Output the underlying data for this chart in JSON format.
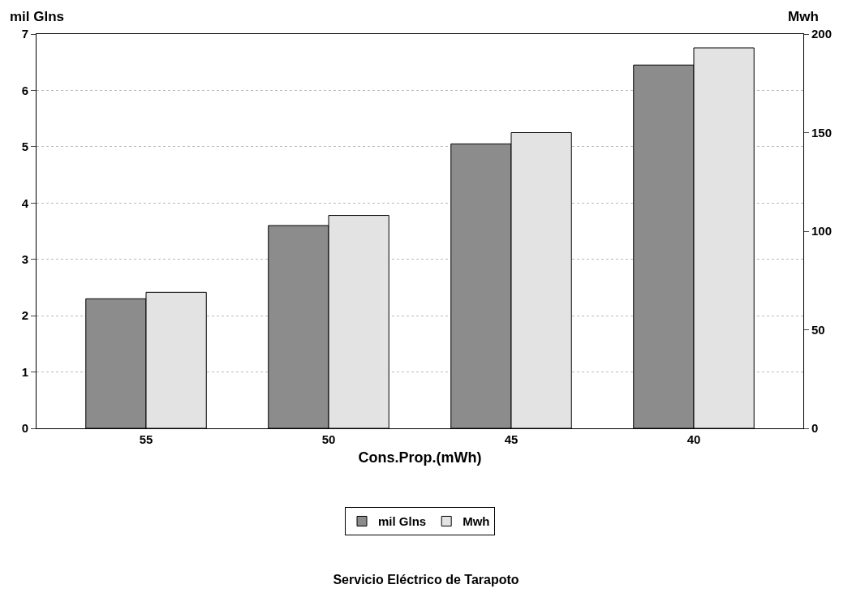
{
  "chart_data": {
    "type": "bar",
    "title": "Servicio Eléctrico de Tarapoto",
    "xlabel": "Cons.Prop.(mWh)",
    "ylabel": "mil Glns",
    "y2label": "Mwh",
    "categories": [
      "55",
      "50",
      "45",
      "40"
    ],
    "series": [
      {
        "name": "mil Glns",
        "color": "#8c8c8c",
        "values": [
          2.3,
          3.6,
          5.05,
          6.45
        ]
      },
      {
        "name": "Mwh",
        "color": "#e3e3e3",
        "axis": "y2",
        "values": [
          69,
          108,
          150,
          193
        ]
      }
    ],
    "ylim": [
      0,
      7
    ],
    "yticks": [
      0,
      1,
      2,
      3,
      4,
      5,
      6,
      7
    ],
    "y2lim": [
      0,
      200
    ],
    "y2ticks": [
      0,
      50,
      100,
      150,
      200
    ],
    "grid": "y",
    "legend": "bottom"
  }
}
